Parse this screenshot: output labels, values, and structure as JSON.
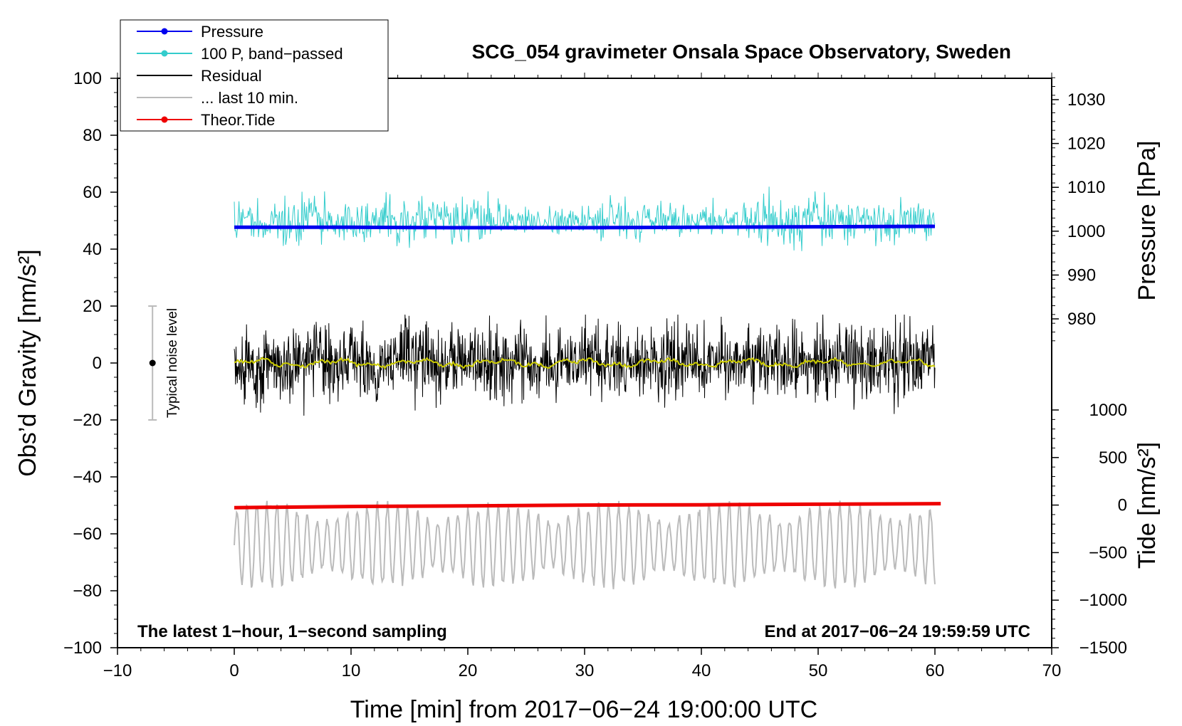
{
  "chart_data": {
    "type": "line",
    "title": "SCG_054 gravimeter Onsala Space Observatory, Sweden",
    "xlabel": "Time [min] from 2017−06−24 19:00:00 UTC",
    "ylabel_left": "Obs’d Gravity [nm/s²]",
    "ylabel_right_pressure": "Pressure [hPa]",
    "ylabel_right_tide": "Tide [nm/s²]",
    "xlim": [
      -10,
      70
    ],
    "ylim_left": [
      -100,
      100
    ],
    "xticks": [
      -10,
      0,
      10,
      20,
      30,
      40,
      50,
      60,
      70
    ],
    "xtick_labels": [
      "−10",
      "0",
      "10",
      "20",
      "30",
      "40",
      "50",
      "60",
      "70"
    ],
    "yticks_left": [
      100,
      80,
      60,
      40,
      20,
      0,
      -20,
      -40,
      -60,
      -80,
      -100
    ],
    "ytick_labels_left": [
      "100",
      "80",
      "60",
      "40",
      "20",
      "0",
      "−20",
      "−40",
      "−60",
      "−80",
      "−100"
    ],
    "pressure_ticks": [
      1030,
      1020,
      1010,
      1000,
      990,
      980
    ],
    "pressure_tick_labels": [
      "1030",
      "1020",
      "1010",
      "1000",
      "990",
      "980"
    ],
    "pressure_axis_map": {
      "hpa": [
        980,
        1030
      ],
      "left_units": [
        15.5,
        92.5
      ]
    },
    "tide_ticks": [
      1000,
      500,
      0,
      -500,
      -1000,
      -1500
    ],
    "tide_tick_labels": [
      "1000",
      "500",
      "0",
      "−500",
      "−1000",
      "−1500"
    ],
    "tide_axis_map": {
      "nms2": [
        -1500,
        1000
      ],
      "left_units": [
        -100,
        -16.5
      ]
    },
    "corner_left": "The latest 1−hour, 1−second sampling",
    "corner_right": "End at 2017−06−24 19:59:59 UTC",
    "noise_label": "Typical noise level",
    "noise_bar": {
      "x": -7,
      "center": 0,
      "half_range": 20
    },
    "legend": [
      {
        "label": "Pressure",
        "color": "#0000ee",
        "style": "line-dot"
      },
      {
        "label": "100 P, band−passed",
        "color": "#33cccc",
        "style": "line-dot"
      },
      {
        "label": "Residual",
        "color": "#000000",
        "style": "line"
      },
      {
        "label": "... last 10 min.",
        "color": "#bbbbbb",
        "style": "line"
      },
      {
        "label": "Theor.Tide",
        "color": "#ee0000",
        "style": "line-dot"
      }
    ],
    "series": [
      {
        "name": "Pressure",
        "color": "#0000ee",
        "x": [
          0,
          10,
          20,
          30,
          40,
          50,
          60
        ],
        "values": [
          1000.9,
          1000.9,
          1000.8,
          1000.8,
          1000.9,
          1001.0,
          1001.1
        ]
      },
      {
        "name": "100 P, band−passed",
        "color": "#33cccc",
        "x_range": [
          0,
          60
        ],
        "center": 50,
        "amplitude": 10,
        "min": 33,
        "max": 64
      },
      {
        "name": "Residual",
        "color": "#000000",
        "x_range": [
          0,
          60
        ],
        "center": 0,
        "amplitude": 15,
        "min": -19,
        "max": 17
      },
      {
        "name": "Residual (smoothed)",
        "color": "#cccc00",
        "x_range": [
          0,
          60
        ],
        "center": 0,
        "amplitude": 1.5
      },
      {
        "name": "... last 10 min.",
        "color": "#bbbbbb",
        "x_range": [
          0,
          60
        ],
        "center": -64,
        "amplitude": 14,
        "min": -80,
        "max": -44
      },
      {
        "name": "Theor.Tide",
        "color": "#ee0000",
        "x": [
          0,
          10,
          20,
          30,
          40,
          50,
          60.5
        ],
        "values": [
          -50.8,
          -50.4,
          -50.2,
          -49.9,
          -49.8,
          -49.6,
          -49.4
        ]
      }
    ]
  }
}
